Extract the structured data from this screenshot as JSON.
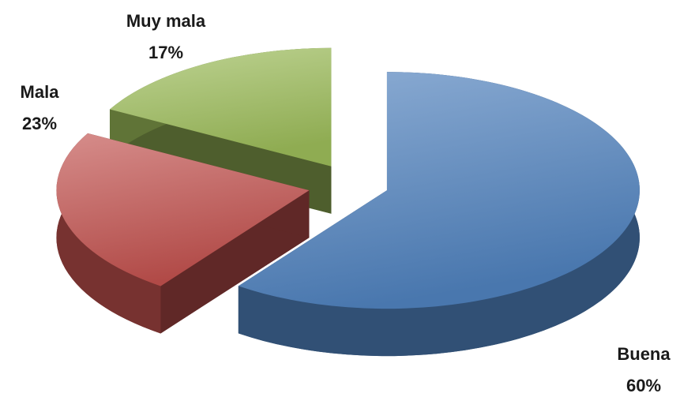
{
  "chart_data": {
    "type": "pie",
    "categories": [
      "Buena",
      "Mala",
      "Muy mala"
    ],
    "values": [
      60,
      23,
      17
    ],
    "value_labels": [
      "60%",
      "23%",
      "17%"
    ],
    "colors": [
      "#4f81bd",
      "#c0504d",
      "#9bbb59"
    ]
  }
}
